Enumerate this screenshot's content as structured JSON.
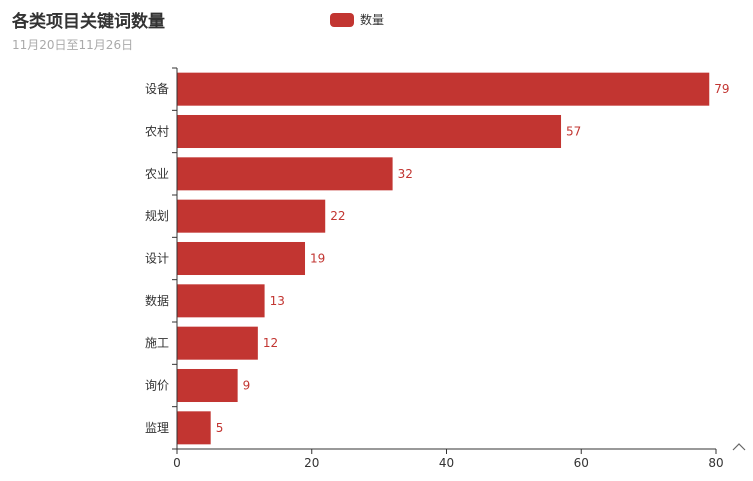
{
  "title": "各类项目关键词数量",
  "subtitle": "11月20日至11月26日",
  "legend": {
    "label": "数量",
    "color": "#c23531"
  },
  "colors": {
    "bar": "#c23531",
    "axis": "#333333",
    "tick_text": "#333333",
    "label_text": "#c23531"
  },
  "toolbox": {
    "icon": "chevron-up-icon"
  },
  "chart_data": {
    "type": "bar",
    "orientation": "horizontal",
    "title": "各类项目关键词数量",
    "subtitle": "11月20日至11月26日",
    "categories": [
      "设备",
      "农村",
      "农业",
      "规划",
      "设计",
      "数据",
      "施工",
      "询价",
      "监理"
    ],
    "series": [
      {
        "name": "数量",
        "values": [
          79,
          57,
          32,
          22,
          19,
          13,
          12,
          9,
          5
        ]
      }
    ],
    "xlim": [
      0,
      80
    ],
    "xticks": [
      0,
      20,
      40,
      60,
      80
    ],
    "grid": false,
    "legend_position": "top-center",
    "data_labels": true
  }
}
